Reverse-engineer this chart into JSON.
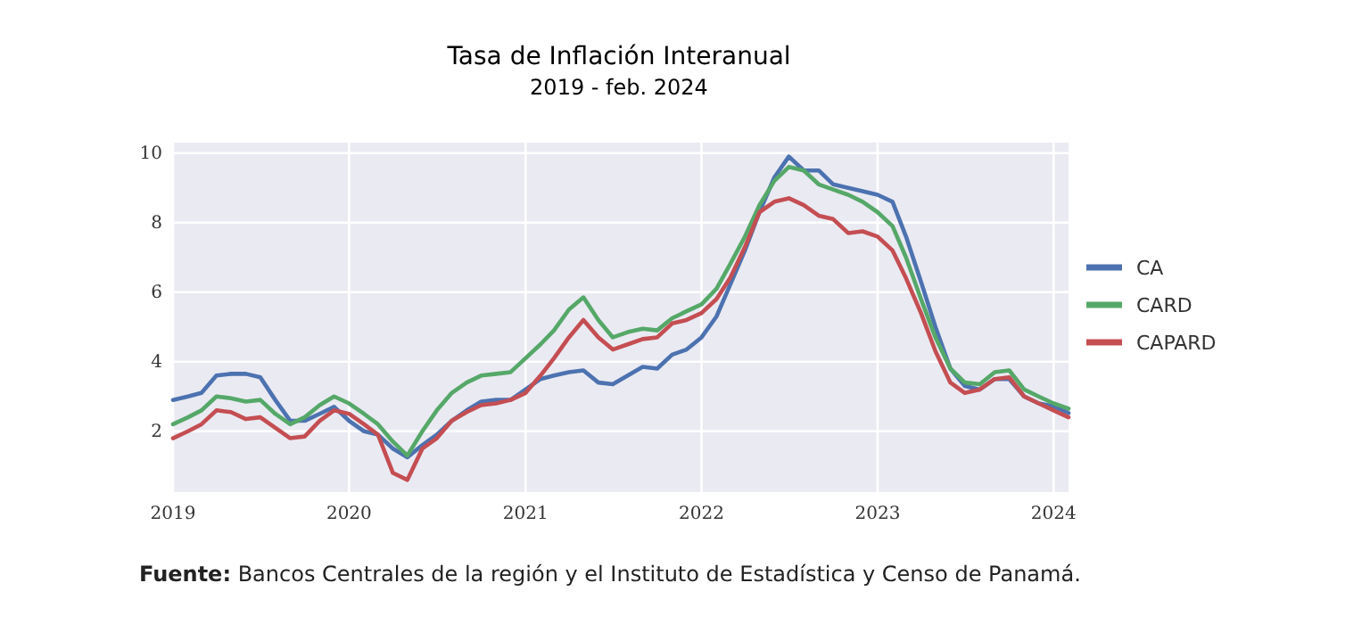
{
  "chart_data": {
    "type": "line",
    "title": "Tasa de Inflación Interanual",
    "subtitle": "2019 - feb. 2024",
    "x": [
      "2019-01",
      "2019-02",
      "2019-03",
      "2019-04",
      "2019-05",
      "2019-06",
      "2019-07",
      "2019-08",
      "2019-09",
      "2019-10",
      "2019-11",
      "2019-12",
      "2020-01",
      "2020-02",
      "2020-03",
      "2020-04",
      "2020-05",
      "2020-06",
      "2020-07",
      "2020-08",
      "2020-09",
      "2020-10",
      "2020-11",
      "2020-12",
      "2021-01",
      "2021-02",
      "2021-03",
      "2021-04",
      "2021-05",
      "2021-06",
      "2021-07",
      "2021-08",
      "2021-09",
      "2021-10",
      "2021-11",
      "2021-12",
      "2022-01",
      "2022-02",
      "2022-03",
      "2022-04",
      "2022-05",
      "2022-06",
      "2022-07",
      "2022-08",
      "2022-09",
      "2022-10",
      "2022-11",
      "2022-12",
      "2023-01",
      "2023-02",
      "2023-03",
      "2023-04",
      "2023-05",
      "2023-06",
      "2023-07",
      "2023-08",
      "2023-09",
      "2023-10",
      "2023-11",
      "2023-12",
      "2024-01",
      "2024-02"
    ],
    "series": [
      {
        "name": "CA",
        "color": "#4c72b0",
        "values": [
          2.9,
          3.0,
          3.1,
          3.6,
          3.65,
          3.65,
          3.55,
          2.9,
          2.3,
          2.3,
          2.5,
          2.7,
          2.3,
          2.0,
          1.9,
          1.5,
          1.25,
          1.6,
          1.9,
          2.3,
          2.6,
          2.85,
          2.9,
          2.9,
          3.2,
          3.5,
          3.6,
          3.7,
          3.75,
          3.4,
          3.35,
          3.6,
          3.85,
          3.8,
          4.2,
          4.35,
          4.7,
          5.3,
          6.2,
          7.2,
          8.3,
          9.3,
          9.9,
          9.5,
          9.5,
          9.1,
          9.0,
          8.9,
          8.8,
          8.6,
          7.6,
          6.3,
          5.0,
          3.8,
          3.3,
          3.2,
          3.5,
          3.5,
          3.0,
          2.8,
          2.72,
          2.52
        ]
      },
      {
        "name": "CARD",
        "color": "#55a868",
        "values": [
          2.2,
          2.4,
          2.6,
          3.0,
          2.95,
          2.85,
          2.9,
          2.5,
          2.2,
          2.4,
          2.75,
          3.0,
          2.8,
          2.5,
          2.2,
          1.7,
          1.3,
          2.0,
          2.6,
          3.1,
          3.4,
          3.6,
          3.65,
          3.7,
          4.1,
          4.5,
          4.9,
          5.5,
          5.85,
          5.2,
          4.7,
          4.85,
          4.95,
          4.9,
          5.25,
          5.45,
          5.65,
          6.1,
          6.8,
          7.6,
          8.5,
          9.2,
          9.6,
          9.5,
          9.1,
          8.95,
          8.8,
          8.6,
          8.3,
          7.9,
          7.0,
          5.8,
          4.7,
          3.8,
          3.4,
          3.35,
          3.7,
          3.75,
          3.2,
          3.0,
          2.8,
          2.65
        ]
      },
      {
        "name": "CAPARD",
        "color": "#c44e52",
        "values": [
          1.8,
          2.0,
          2.2,
          2.6,
          2.55,
          2.35,
          2.4,
          2.1,
          1.8,
          1.85,
          2.3,
          2.6,
          2.5,
          2.2,
          1.9,
          0.8,
          0.6,
          1.5,
          1.8,
          2.3,
          2.55,
          2.75,
          2.8,
          2.9,
          3.1,
          3.6,
          4.1,
          4.7,
          5.2,
          4.7,
          4.35,
          4.5,
          4.65,
          4.7,
          5.1,
          5.2,
          5.4,
          5.8,
          6.4,
          7.3,
          8.3,
          8.6,
          8.7,
          8.5,
          8.2,
          8.1,
          7.7,
          7.75,
          7.6,
          7.2,
          6.4,
          5.4,
          4.3,
          3.4,
          3.1,
          3.2,
          3.5,
          3.55,
          3.0,
          2.8,
          2.6,
          2.4
        ]
      }
    ],
    "xlim": [
      "2019-01",
      "2024-02"
    ],
    "xticks": [
      {
        "value": "2019-01",
        "label": "2019"
      },
      {
        "value": "2020-01",
        "label": "2020"
      },
      {
        "value": "2021-01",
        "label": "2021"
      },
      {
        "value": "2022-01",
        "label": "2022"
      },
      {
        "value": "2023-01",
        "label": "2023"
      },
      {
        "value": "2024-01",
        "label": "2024"
      }
    ],
    "ylim": [
      0.25,
      10.3
    ],
    "yticks": [
      2,
      4,
      6,
      8,
      10
    ],
    "grid": true,
    "legend": "right",
    "marker": "none",
    "line_style": "solid",
    "annotations": [
      "Fuente: Bancos Centrales de la región y el Instituto de Estadística y Censo de Panamá."
    ]
  }
}
